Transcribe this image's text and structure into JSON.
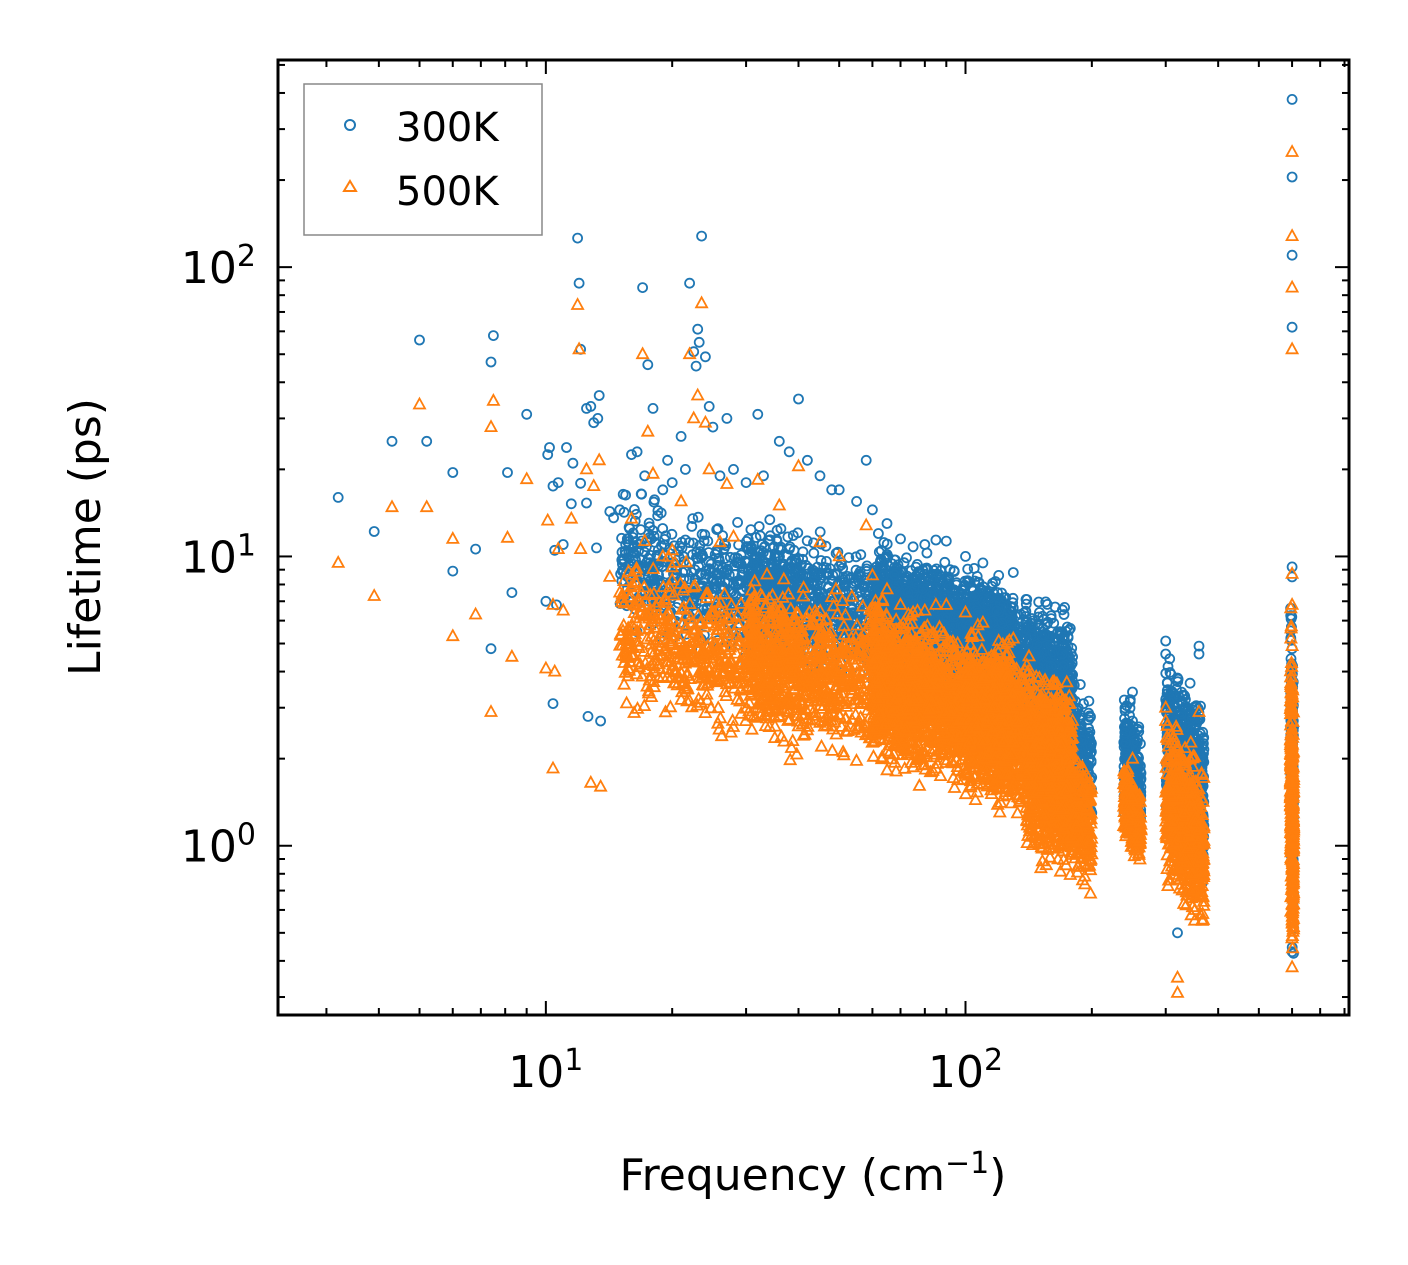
{
  "chart_data": {
    "type": "scatter",
    "title": "",
    "xlabel": "Frequency (cm",
    "xlabel_sup": "−1",
    "xlabel_close": ")",
    "ylabel": "Lifetime (ps)",
    "xscale": "log",
    "yscale": "log",
    "xlim": [
      2.3,
      820
    ],
    "ylim": [
      0.26,
      520
    ],
    "x_ticks": [
      {
        "value": 10,
        "base": "10",
        "exp": "1"
      },
      {
        "value": 100,
        "base": "10",
        "exp": "2"
      }
    ],
    "y_ticks": [
      {
        "value": 1,
        "base": "10",
        "exp": "0"
      },
      {
        "value": 10,
        "base": "10",
        "exp": "1"
      },
      {
        "value": 100,
        "base": "10",
        "exp": "2"
      }
    ],
    "legend_position": "top-left",
    "series": [
      {
        "name": "300K",
        "marker": "circle",
        "color": "#1f77b4",
        "points": [
          [
            3.2,
            16
          ],
          [
            3.9,
            12.2
          ],
          [
            4.3,
            25
          ],
          [
            5.0,
            56
          ],
          [
            5.2,
            25
          ],
          [
            6.0,
            19.5
          ],
          [
            6.0,
            8.9
          ],
          [
            6.8,
            10.6
          ],
          [
            7.4,
            4.8
          ],
          [
            7.4,
            47
          ],
          [
            7.5,
            58
          ],
          [
            8.1,
            19.5
          ],
          [
            8.3,
            7.5
          ],
          [
            9.0,
            31
          ],
          [
            10.0,
            7.0
          ],
          [
            10.1,
            22.5
          ],
          [
            10.2,
            23.8
          ],
          [
            10.4,
            17.5
          ],
          [
            10.4,
            3.1
          ],
          [
            10.5,
            10.5
          ],
          [
            10.6,
            6.8
          ],
          [
            10.7,
            18
          ],
          [
            11.0,
            11
          ],
          [
            11.2,
            23.8
          ],
          [
            11.5,
            15.2
          ],
          [
            11.6,
            21
          ],
          [
            11.9,
            126
          ],
          [
            12.0,
            88
          ],
          [
            12.1,
            52
          ],
          [
            12.1,
            17.9
          ],
          [
            12.5,
            15.3
          ],
          [
            12.5,
            32.5
          ],
          [
            12.6,
            2.8
          ],
          [
            12.8,
            33
          ],
          [
            13.0,
            29
          ],
          [
            13.2,
            10.7
          ],
          [
            13.4,
            36
          ],
          [
            13.5,
            2.7
          ],
          [
            13.3,
            30
          ],
          [
            14.2,
            14.3
          ],
          [
            14.5,
            13.6
          ],
          [
            15.0,
            14.5
          ],
          [
            15.5,
            11
          ],
          [
            16.0,
            22.5
          ],
          [
            16.5,
            23
          ],
          [
            17.0,
            85
          ],
          [
            17.2,
            19
          ],
          [
            17.5,
            46
          ],
          [
            18.0,
            32.5
          ],
          [
            19.0,
            17
          ],
          [
            19.5,
            21.5
          ],
          [
            20.0,
            18
          ],
          [
            21.0,
            26
          ],
          [
            21.5,
            20
          ],
          [
            22.0,
            88
          ],
          [
            22.5,
            51
          ],
          [
            22.8,
            45.5
          ],
          [
            23.0,
            61
          ],
          [
            23.2,
            55
          ],
          [
            23.5,
            128
          ],
          [
            24.0,
            49
          ],
          [
            24.5,
            33
          ],
          [
            25.0,
            28
          ],
          [
            26.0,
            19
          ],
          [
            27.0,
            30
          ],
          [
            28.0,
            20
          ],
          [
            30.0,
            18
          ],
          [
            32.0,
            31
          ],
          [
            33.0,
            19
          ],
          [
            36.0,
            25
          ],
          [
            38.0,
            23
          ],
          [
            40.0,
            35
          ],
          [
            42.0,
            21.5
          ],
          [
            45.0,
            19
          ],
          [
            48.0,
            17
          ],
          [
            50.0,
            17
          ],
          [
            55.0,
            15.5
          ],
          [
            58.0,
            21.5
          ],
          [
            60.0,
            14.5
          ],
          [
            62.0,
            12
          ],
          [
            65.0,
            13
          ],
          [
            70.0,
            11.5
          ],
          [
            75.0,
            10.8
          ],
          [
            80.0,
            11
          ],
          [
            85.0,
            11.4
          ],
          [
            90.0,
            11.3
          ],
          [
            100.0,
            10
          ],
          [
            110.0,
            9.5
          ],
          [
            120.0,
            8.6
          ],
          [
            130.0,
            8.8
          ],
          [
            140.0,
            7.1
          ],
          [
            150.0,
            6.4
          ],
          [
            160.0,
            6.1
          ],
          [
            170.0,
            4.6
          ],
          [
            180.0,
            4.5
          ],
          [
            200.0,
            1.3
          ],
          [
            250.0,
            3.4
          ],
          [
            250.0,
            2.7
          ],
          [
            300.0,
            5.1
          ],
          [
            300.0,
            4.6
          ],
          [
            300.0,
            3.2
          ],
          [
            320.0,
            3.8
          ],
          [
            320.0,
            0.5
          ],
          [
            360.0,
            4.9
          ],
          [
            360.0,
            4.6
          ],
          [
            600.0,
            380
          ],
          [
            600.0,
            205
          ],
          [
            600.0,
            110
          ],
          [
            600.0,
            62
          ],
          [
            600.0,
            9.2
          ],
          [
            600.0,
            8.5
          ],
          [
            600.0,
            4.8
          ],
          [
            600.0,
            2.1
          ],
          [
            600.0,
            0.43
          ]
        ],
        "bands": [
          {
            "x_from": 15,
            "x_to": 40,
            "y_min": 4,
            "y_max": 16,
            "count": 620
          },
          {
            "x_from": 30,
            "x_to": 80,
            "y_min": 3.5,
            "y_max": 13,
            "count": 900
          },
          {
            "x_from": 60,
            "x_to": 130,
            "y_min": 3.2,
            "y_max": 10.5,
            "count": 1600
          },
          {
            "x_from": 100,
            "x_to": 180,
            "y_min": 2.2,
            "y_max": 8.5,
            "count": 1200
          },
          {
            "x_from": 140,
            "x_to": 200,
            "y_min": 1.2,
            "y_max": 4.4,
            "count": 600
          },
          {
            "x_from": 238,
            "x_to": 262,
            "y_min": 1.0,
            "y_max": 3.3,
            "count": 250
          },
          {
            "x_from": 300,
            "x_to": 370,
            "y_min": 0.8,
            "y_max": 4.6,
            "count": 600
          },
          {
            "x_from": 595,
            "x_to": 605,
            "y_min": 0.42,
            "y_max": 8.5,
            "count": 260
          }
        ]
      },
      {
        "name": "500K",
        "marker": "triangle",
        "color": "#ff7f0e",
        "points": [
          [
            3.2,
            9.5
          ],
          [
            3.9,
            7.3
          ],
          [
            4.3,
            14.8
          ],
          [
            5.0,
            33.5
          ],
          [
            5.2,
            14.8
          ],
          [
            6.0,
            11.5
          ],
          [
            6.0,
            5.3
          ],
          [
            6.8,
            6.3
          ],
          [
            7.4,
            2.9
          ],
          [
            7.4,
            28
          ],
          [
            7.5,
            34.5
          ],
          [
            8.1,
            11.6
          ],
          [
            8.3,
            4.5
          ],
          [
            9.0,
            18.5
          ],
          [
            10.0,
            4.1
          ],
          [
            10.1,
            13.3
          ],
          [
            10.4,
            6.8
          ],
          [
            10.4,
            1.85
          ],
          [
            10.5,
            4.0
          ],
          [
            10.7,
            10.6
          ],
          [
            11.0,
            6.5
          ],
          [
            11.5,
            13.5
          ],
          [
            11.9,
            74
          ],
          [
            12.0,
            52
          ],
          [
            12.1,
            10.6
          ],
          [
            12.5,
            20
          ],
          [
            12.8,
            1.65
          ],
          [
            13.0,
            17.5
          ],
          [
            13.4,
            21.5
          ],
          [
            13.5,
            1.6
          ],
          [
            14.2,
            8.5
          ],
          [
            15.0,
            7.5
          ],
          [
            16.0,
            13.5
          ],
          [
            17.0,
            50
          ],
          [
            17.2,
            11.3
          ],
          [
            17.5,
            27
          ],
          [
            18.0,
            19.3
          ],
          [
            19.0,
            10
          ],
          [
            20.0,
            10.5
          ],
          [
            21.0,
            15.5
          ],
          [
            22.0,
            50
          ],
          [
            22.5,
            30
          ],
          [
            23.0,
            36
          ],
          [
            23.5,
            75
          ],
          [
            24.0,
            29
          ],
          [
            24.5,
            20
          ],
          [
            26.0,
            11.2
          ],
          [
            27.0,
            17.8
          ],
          [
            28.0,
            11.7
          ],
          [
            32.0,
            18.4
          ],
          [
            36.0,
            15
          ],
          [
            40.0,
            20.5
          ],
          [
            45.0,
            11.2
          ],
          [
            50.0,
            10
          ],
          [
            58.0,
            12.8
          ],
          [
            60.0,
            8.6
          ],
          [
            65.0,
            7.7
          ],
          [
            70.0,
            6.8
          ],
          [
            75.0,
            6.4
          ],
          [
            80.0,
            6.5
          ],
          [
            85.0,
            6.8
          ],
          [
            90.0,
            6.8
          ],
          [
            100.0,
            6.4
          ],
          [
            110.0,
            5.9
          ],
          [
            120.0,
            5.1
          ],
          [
            130.0,
            5.2
          ],
          [
            140.0,
            4.2
          ],
          [
            150.0,
            3.8
          ],
          [
            160.0,
            3.6
          ],
          [
            170.0,
            2.7
          ],
          [
            180.0,
            2.7
          ],
          [
            250.0,
            2.0
          ],
          [
            250.0,
            1.6
          ],
          [
            300.0,
            3.0
          ],
          [
            300.0,
            2.7
          ],
          [
            320.0,
            2.2
          ],
          [
            320.0,
            0.35
          ],
          [
            320.0,
            0.31
          ],
          [
            360.0,
            2.9
          ],
          [
            600.0,
            250
          ],
          [
            600.0,
            128
          ],
          [
            600.0,
            85
          ],
          [
            600.0,
            52
          ],
          [
            600.0,
            8.7
          ],
          [
            600.0,
            6.8
          ],
          [
            600.0,
            4.9
          ],
          [
            600.0,
            3.5
          ],
          [
            600.0,
            0.38
          ]
        ],
        "bands": [
          {
            "x_from": 15,
            "x_to": 40,
            "y_min": 2.2,
            "y_max": 10,
            "count": 620
          },
          {
            "x_from": 30,
            "x_to": 80,
            "y_min": 1.8,
            "y_max": 8.5,
            "count": 900
          },
          {
            "x_from": 60,
            "x_to": 130,
            "y_min": 1.5,
            "y_max": 6.5,
            "count": 1600
          },
          {
            "x_from": 100,
            "x_to": 180,
            "y_min": 1.1,
            "y_max": 5.2,
            "count": 1200
          },
          {
            "x_from": 140,
            "x_to": 200,
            "y_min": 0.72,
            "y_max": 2.7,
            "count": 600
          },
          {
            "x_from": 238,
            "x_to": 262,
            "y_min": 0.85,
            "y_max": 1.9,
            "count": 250
          },
          {
            "x_from": 300,
            "x_to": 370,
            "y_min": 0.5,
            "y_max": 2.8,
            "count": 600
          },
          {
            "x_from": 595,
            "x_to": 605,
            "y_min": 0.36,
            "y_max": 6.0,
            "count": 300
          }
        ]
      }
    ]
  }
}
